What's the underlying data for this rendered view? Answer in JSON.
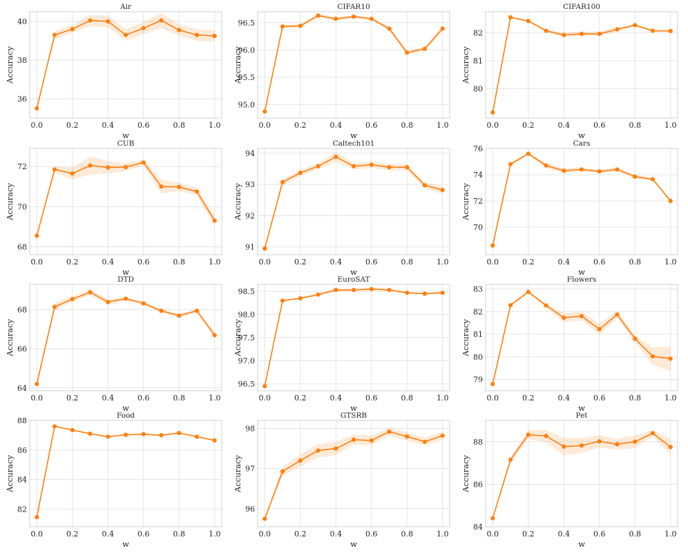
{
  "colors": {
    "series": "#ff7f0e",
    "grid": "#e1e1e1"
  },
  "chart_data": [
    {
      "type": "line",
      "title": "Air",
      "xlabel": "w",
      "ylabel": "Accuracy",
      "x": [
        0.0,
        0.1,
        0.2,
        0.3,
        0.4,
        0.5,
        0.6,
        0.7,
        0.8,
        0.9,
        1.0
      ],
      "values": [
        35.5,
        39.3,
        39.6,
        40.05,
        40.0,
        39.3,
        39.65,
        40.05,
        39.55,
        39.3,
        39.25
      ],
      "band": [
        0.0,
        0.2,
        0.2,
        0.3,
        0.3,
        0.3,
        0.3,
        0.4,
        0.3,
        0.3,
        0.3
      ],
      "ylim": [
        35.0,
        40.5
      ],
      "yticks": [
        36,
        38,
        40
      ],
      "ytick_labels": [
        "36",
        "38",
        "40"
      ],
      "xticks": [
        0.0,
        0.2,
        0.4,
        0.6,
        0.8,
        1.0
      ],
      "xtick_labels": [
        "0.0",
        "0.2",
        "0.4",
        "0.6",
        "0.8",
        "1.0"
      ]
    },
    {
      "type": "line",
      "title": "CIFAR10",
      "xlabel": "w",
      "ylabel": "Accuracy",
      "x": [
        0.0,
        0.1,
        0.2,
        0.3,
        0.4,
        0.5,
        0.6,
        0.7,
        0.8,
        0.9,
        1.0
      ],
      "values": [
        94.87,
        96.43,
        96.44,
        96.63,
        96.57,
        96.61,
        96.57,
        96.39,
        95.95,
        96.02,
        96.39
      ],
      "band": [
        0.0,
        0.03,
        0.03,
        0.04,
        0.03,
        0.03,
        0.03,
        0.04,
        0.04,
        0.04,
        0.05
      ],
      "ylim": [
        94.75,
        96.7
      ],
      "yticks": [
        95.0,
        95.5,
        96.0,
        96.5
      ],
      "ytick_labels": [
        "95.0",
        "95.5",
        "96.0",
        "96.5"
      ],
      "xticks": [
        0.0,
        0.2,
        0.4,
        0.6,
        0.8,
        1.0
      ],
      "xtick_labels": [
        "0.0",
        "0.2",
        "0.4",
        "0.6",
        "0.8",
        "1.0"
      ]
    },
    {
      "type": "line",
      "title": "CIFAR100",
      "xlabel": "w",
      "ylabel": "Accuracy",
      "x": [
        0.0,
        0.1,
        0.2,
        0.3,
        0.4,
        0.5,
        0.6,
        0.7,
        0.8,
        0.9,
        1.0
      ],
      "values": [
        79.15,
        82.55,
        82.42,
        82.07,
        81.92,
        81.96,
        81.96,
        82.12,
        82.27,
        82.07,
        82.06
      ],
      "band": [
        0.0,
        0.03,
        0.03,
        0.05,
        0.08,
        0.08,
        0.08,
        0.08,
        0.05,
        0.03,
        0.03
      ],
      "ylim": [
        78.95,
        82.75
      ],
      "yticks": [
        80,
        81,
        82
      ],
      "ytick_labels": [
        "80",
        "81",
        "82"
      ],
      "xticks": [
        0.0,
        0.2,
        0.4,
        0.6,
        0.8,
        1.0
      ],
      "xtick_labels": [
        "0.0",
        "0.2",
        "0.4",
        "0.6",
        "0.8",
        "1.0"
      ]
    },
    {
      "type": "line",
      "title": "CUB",
      "xlabel": "w",
      "ylabel": "Accuracy",
      "x": [
        0.0,
        0.1,
        0.2,
        0.3,
        0.4,
        0.5,
        0.6,
        0.7,
        0.8,
        0.9,
        1.0
      ],
      "values": [
        68.55,
        71.85,
        71.65,
        72.05,
        71.95,
        71.97,
        72.2,
        71.0,
        70.98,
        70.75,
        69.3
      ],
      "band": [
        0.0,
        0.15,
        0.3,
        0.45,
        0.3,
        0.2,
        0.15,
        0.35,
        0.2,
        0.2,
        0.25
      ],
      "ylim": [
        67.6,
        72.9
      ],
      "yticks": [
        68,
        70,
        72
      ],
      "ytick_labels": [
        "68",
        "70",
        "72"
      ],
      "xticks": [
        0.0,
        0.2,
        0.4,
        0.6,
        0.8,
        1.0
      ],
      "xtick_labels": [
        "0.0",
        "0.2",
        "0.4",
        "0.6",
        "0.8",
        "1.0"
      ]
    },
    {
      "type": "line",
      "title": "Caltech101",
      "xlabel": "w",
      "ylabel": "Accuracy",
      "x": [
        0.0,
        0.1,
        0.2,
        0.3,
        0.4,
        0.5,
        0.6,
        0.7,
        0.8,
        0.9,
        1.0
      ],
      "values": [
        90.95,
        93.07,
        93.37,
        93.58,
        93.88,
        93.58,
        93.63,
        93.55,
        93.55,
        92.97,
        92.82
      ],
      "band": [
        0.0,
        0.1,
        0.1,
        0.1,
        0.15,
        0.1,
        0.1,
        0.1,
        0.1,
        0.1,
        0.12
      ],
      "ylim": [
        90.75,
        94.15
      ],
      "yticks": [
        91,
        92,
        93,
        94
      ],
      "ytick_labels": [
        "91",
        "92",
        "93",
        "94"
      ],
      "xticks": [
        0.0,
        0.2,
        0.4,
        0.6,
        0.8,
        1.0
      ],
      "xtick_labels": [
        "0.0",
        "0.2",
        "0.4",
        "0.6",
        "0.8",
        "1.0"
      ]
    },
    {
      "type": "line",
      "title": "Cars",
      "xlabel": "w",
      "ylabel": "Accuracy",
      "x": [
        0.0,
        0.1,
        0.2,
        0.3,
        0.4,
        0.5,
        0.6,
        0.7,
        0.8,
        0.9,
        1.0
      ],
      "values": [
        68.6,
        74.8,
        75.6,
        74.7,
        74.3,
        74.4,
        74.25,
        74.4,
        73.85,
        73.65,
        72.0
      ],
      "band": [
        0.0,
        0.1,
        0.1,
        0.2,
        0.2,
        0.15,
        0.15,
        0.15,
        0.15,
        0.1,
        0.1
      ],
      "ylim": [
        67.9,
        76.0
      ],
      "yticks": [
        70,
        72,
        74,
        76
      ],
      "ytick_labels": [
        "70",
        "72",
        "74",
        "76"
      ],
      "xticks": [
        0.0,
        0.2,
        0.4,
        0.6,
        0.8,
        1.0
      ],
      "xtick_labels": [
        "0.0",
        "0.2",
        "0.4",
        "0.6",
        "0.8",
        "1.0"
      ]
    },
    {
      "type": "line",
      "title": "DTD",
      "xlabel": "w",
      "ylabel": "Accuracy",
      "x": [
        0.0,
        0.1,
        0.2,
        0.3,
        0.4,
        0.5,
        0.6,
        0.7,
        0.8,
        0.9,
        1.0
      ],
      "values": [
        64.2,
        68.15,
        68.55,
        68.9,
        68.4,
        68.57,
        68.33,
        67.95,
        67.7,
        67.95,
        66.7
      ],
      "band": [
        0.0,
        0.2,
        0.15,
        0.15,
        0.15,
        0.1,
        0.1,
        0.1,
        0.1,
        0.1,
        0.15
      ],
      "ylim": [
        63.85,
        69.3
      ],
      "yticks": [
        64,
        66,
        68
      ],
      "ytick_labels": [
        "64",
        "66",
        "68"
      ],
      "xticks": [
        0.0,
        0.2,
        0.4,
        0.6,
        0.8,
        1.0
      ],
      "xtick_labels": [
        "0.0",
        "0.2",
        "0.4",
        "0.6",
        "0.8",
        "1.0"
      ]
    },
    {
      "type": "line",
      "title": "EuroSAT",
      "xlabel": "w",
      "ylabel": "Accuracy",
      "x": [
        0.0,
        0.1,
        0.2,
        0.3,
        0.4,
        0.5,
        0.6,
        0.7,
        0.8,
        0.9,
        1.0
      ],
      "values": [
        96.45,
        98.3,
        98.35,
        98.43,
        98.53,
        98.53,
        98.55,
        98.53,
        98.47,
        98.45,
        98.47
      ],
      "band": [
        0.0,
        0.02,
        0.02,
        0.03,
        0.04,
        0.03,
        0.03,
        0.03,
        0.02,
        0.02,
        0.02
      ],
      "ylim": [
        96.35,
        98.65
      ],
      "yticks": [
        96.5,
        97.0,
        97.5,
        98.0,
        98.5
      ],
      "ytick_labels": [
        "96.5",
        "97.0",
        "97.5",
        "98.0",
        "98.5"
      ],
      "xticks": [
        0.0,
        0.2,
        0.4,
        0.6,
        0.8,
        1.0
      ],
      "xtick_labels": [
        "0.0",
        "0.2",
        "0.4",
        "0.6",
        "0.8",
        "1.0"
      ]
    },
    {
      "type": "line",
      "title": "Flowers",
      "xlabel": "w",
      "ylabel": "Accuracy",
      "x": [
        0.0,
        0.1,
        0.2,
        0.3,
        0.4,
        0.5,
        0.6,
        0.7,
        0.8,
        0.9,
        1.0
      ],
      "values": [
        78.8,
        82.28,
        82.87,
        82.27,
        81.73,
        81.8,
        81.22,
        81.87,
        80.8,
        80.02,
        79.92
      ],
      "band": [
        0.0,
        0.05,
        0.05,
        0.1,
        0.2,
        0.2,
        0.25,
        0.15,
        0.15,
        0.4,
        0.55
      ],
      "ylim": [
        78.5,
        83.2
      ],
      "yticks": [
        79,
        80,
        81,
        82,
        83
      ],
      "ytick_labels": [
        "79",
        "80",
        "81",
        "82",
        "83"
      ],
      "xticks": [
        0.0,
        0.2,
        0.4,
        0.6,
        0.8,
        1.0
      ],
      "xtick_labels": [
        "0.0",
        "0.2",
        "0.4",
        "0.6",
        "0.8",
        "1.0"
      ]
    },
    {
      "type": "line",
      "title": "Food",
      "xlabel": "w",
      "ylabel": "Accuracy",
      "x": [
        0.0,
        0.1,
        0.2,
        0.3,
        0.4,
        0.5,
        0.6,
        0.7,
        0.8,
        0.9,
        1.0
      ],
      "values": [
        81.45,
        87.6,
        87.35,
        87.1,
        86.9,
        87.03,
        87.07,
        87.0,
        87.15,
        86.9,
        86.65
      ],
      "band": [
        0.0,
        0.05,
        0.05,
        0.05,
        0.05,
        0.05,
        0.05,
        0.05,
        0.05,
        0.05,
        0.05
      ],
      "ylim": [
        80.8,
        88.0
      ],
      "yticks": [
        82,
        84,
        86,
        88
      ],
      "ytick_labels": [
        "82",
        "84",
        "86",
        "88"
      ],
      "xticks": [
        0.0,
        0.2,
        0.4,
        0.6,
        0.8,
        1.0
      ],
      "xtick_labels": [
        "0.0",
        "0.2",
        "0.4",
        "0.6",
        "0.8",
        "1.0"
      ]
    },
    {
      "type": "line",
      "title": "GTSRB",
      "xlabel": "w",
      "ylabel": "Accuracy",
      "x": [
        0.0,
        0.1,
        0.2,
        0.3,
        0.4,
        0.5,
        0.6,
        0.7,
        0.8,
        0.9,
        1.0
      ],
      "values": [
        95.75,
        96.93,
        97.2,
        97.45,
        97.5,
        97.72,
        97.7,
        97.92,
        97.8,
        97.67,
        97.82
      ],
      "band": [
        0.0,
        0.12,
        0.15,
        0.17,
        0.17,
        0.12,
        0.12,
        0.1,
        0.1,
        0.1,
        0.1
      ],
      "ylim": [
        95.55,
        98.2
      ],
      "yticks": [
        96,
        97,
        98
      ],
      "ytick_labels": [
        "96",
        "97",
        "98"
      ],
      "xticks": [
        0.0,
        0.2,
        0.4,
        0.6,
        0.8,
        1.0
      ],
      "xtick_labels": [
        "0.0",
        "0.2",
        "0.4",
        "0.6",
        "0.8",
        "1.0"
      ]
    },
    {
      "type": "line",
      "title": "Pet",
      "xlabel": "w",
      "ylabel": "Accuracy",
      "x": [
        0.0,
        0.1,
        0.2,
        0.3,
        0.4,
        0.5,
        0.6,
        0.7,
        0.8,
        0.9,
        1.0
      ],
      "values": [
        84.4,
        87.15,
        88.33,
        88.27,
        87.77,
        87.82,
        88.02,
        87.88,
        88.0,
        88.4,
        87.75
      ],
      "band": [
        0.0,
        0.15,
        0.2,
        0.3,
        0.4,
        0.35,
        0.3,
        0.25,
        0.3,
        0.15,
        0.4
      ],
      "ylim": [
        84.0,
        89.0
      ],
      "yticks": [
        84,
        86,
        88
      ],
      "ytick_labels": [
        "84",
        "86",
        "88"
      ],
      "xticks": [
        0.0,
        0.2,
        0.4,
        0.6,
        0.8,
        1.0
      ],
      "xtick_labels": [
        "0.0",
        "0.2",
        "0.4",
        "0.6",
        "0.8",
        "1.0"
      ]
    }
  ]
}
